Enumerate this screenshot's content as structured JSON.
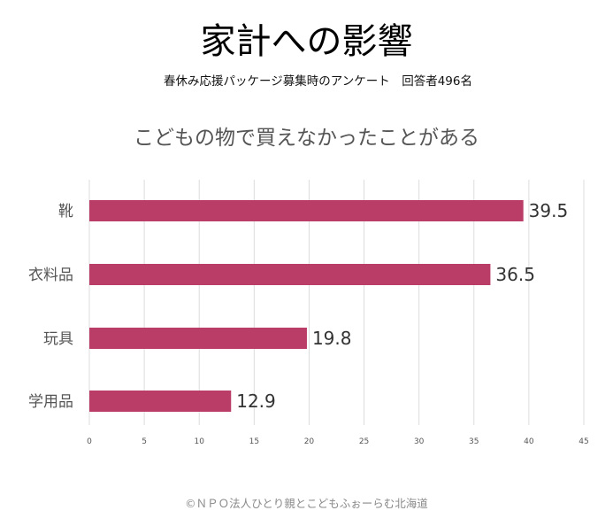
{
  "header": {
    "title": "家計への影響",
    "subtitle": "春休み応援パッケージ募集時のアンケート　回答者496名"
  },
  "footer": {
    "credit": "©ＮＰＯ法人ひとり親とこどもふぉーらむ北海道"
  },
  "colors": {
    "bar": "#b93d66",
    "grid": "#dcdcdc",
    "category_text": "#555555",
    "value_text": "#333333"
  },
  "chart_data": {
    "type": "bar",
    "orientation": "horizontal",
    "title": "こどもの物で買えなかったことがある",
    "categories": [
      "靴",
      "衣料品",
      "玩具",
      "学用品"
    ],
    "values": [
      39.5,
      36.5,
      19.8,
      12.9
    ],
    "value_labels": [
      "39.5",
      "36.5",
      "19.8",
      "12.9"
    ],
    "xlim": [
      0,
      45
    ],
    "x_ticks": [
      0,
      5,
      10,
      15,
      20,
      25,
      30,
      35,
      40,
      45
    ],
    "x_tick_labels": [
      "0",
      "5",
      "10",
      "15",
      "20",
      "25",
      "30",
      "35",
      "40",
      "45"
    ],
    "grid": true,
    "legend": "none"
  }
}
